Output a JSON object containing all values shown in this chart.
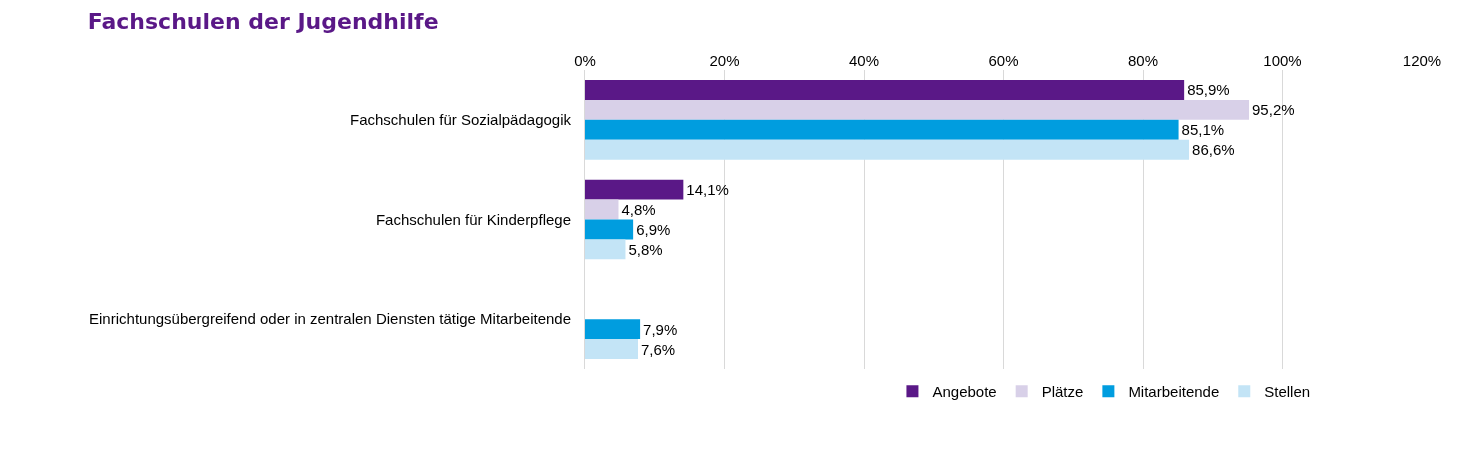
{
  "chart_data": {
    "type": "bar",
    "orientation": "horizontal",
    "title": "Fachschulen der Jugendhilfe",
    "categories": [
      "Fachschulen für Sozialpädagogik",
      "Fachschulen für Kinderpflege",
      "Einrichtungsübergreifend oder in zentralen Diensten tätige Mitarbeitende"
    ],
    "series": [
      {
        "name": "Angebote",
        "color": "#5a1887",
        "values": [
          85.9,
          14.1,
          null
        ],
        "value_labels": [
          "85,9%",
          "14,1%",
          null
        ]
      },
      {
        "name": "Plätze",
        "color": "#d8d0e8",
        "values": [
          95.2,
          4.8,
          null
        ],
        "value_labels": [
          "95,2%",
          "4,8%",
          null
        ]
      },
      {
        "name": "Mitarbeitende",
        "color": "#009ddf",
        "values": [
          85.1,
          6.9,
          7.9
        ],
        "value_labels": [
          "85,1%",
          "6,9%",
          "7,9%"
        ]
      },
      {
        "name": "Stellen",
        "color": "#c3e4f6",
        "values": [
          86.6,
          5.8,
          7.6
        ],
        "value_labels": [
          "86,6%",
          "5,8%",
          "7,6%"
        ]
      }
    ],
    "xlim": [
      0,
      120
    ],
    "xticks": [
      {
        "value": 0,
        "label": "0%"
      },
      {
        "value": 20,
        "label": "20%"
      },
      {
        "value": 40,
        "label": "40%"
      },
      {
        "value": 60,
        "label": "60%"
      },
      {
        "value": 80,
        "label": "80%"
      },
      {
        "value": 100,
        "label": "100%"
      },
      {
        "value": 120,
        "label": "120%"
      }
    ],
    "grid": "x",
    "legend": "bottom"
  }
}
